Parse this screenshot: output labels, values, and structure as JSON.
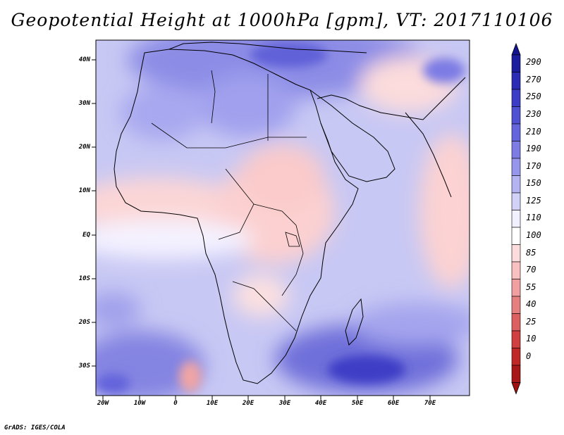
{
  "title": "Geopotential Height at 1000hPa [gpm], VT: 2017110106",
  "credit": "GrADS: IGES/COLA",
  "lat_labels": [
    "40N",
    "30N",
    "20N",
    "10N",
    "EQ",
    "10S",
    "20S",
    "30S"
  ],
  "lon_labels": [
    "20W",
    "10W",
    "0",
    "10E",
    "20E",
    "30E",
    "40E",
    "50E",
    "60E",
    "70E"
  ],
  "colorbar": {
    "labels": [
      "290",
      "270",
      "250",
      "230",
      "210",
      "190",
      "170",
      "150",
      "125",
      "110",
      "100",
      "85",
      "70",
      "55",
      "40",
      "25",
      "10",
      "0"
    ],
    "colors": [
      "#1c1c9e",
      "#2b2bb6",
      "#3c3cc6",
      "#5050d2",
      "#6464dc",
      "#7c7ce4",
      "#9696ec",
      "#b4b4f2",
      "#d2d2f8",
      "#f0f0ff",
      "#ffffff",
      "#fcdcdc",
      "#f8c0c0",
      "#f0a0a0",
      "#e68080",
      "#dc6060",
      "#d04040",
      "#c02828",
      "#a81818"
    ],
    "top_color": "#141490",
    "bottom_color": "#a01010"
  },
  "chart_data": {
    "type": "heatmap",
    "title": "Geopotential Height at 1000hPa [gpm], VT: 2017110106",
    "x_range": [
      -23,
      80
    ],
    "y_range": [
      -37,
      45
    ],
    "levels": [
      0,
      10,
      25,
      40,
      55,
      70,
      85,
      100,
      110,
      125,
      150,
      170,
      190,
      210,
      230,
      250,
      270,
      290
    ]
  }
}
